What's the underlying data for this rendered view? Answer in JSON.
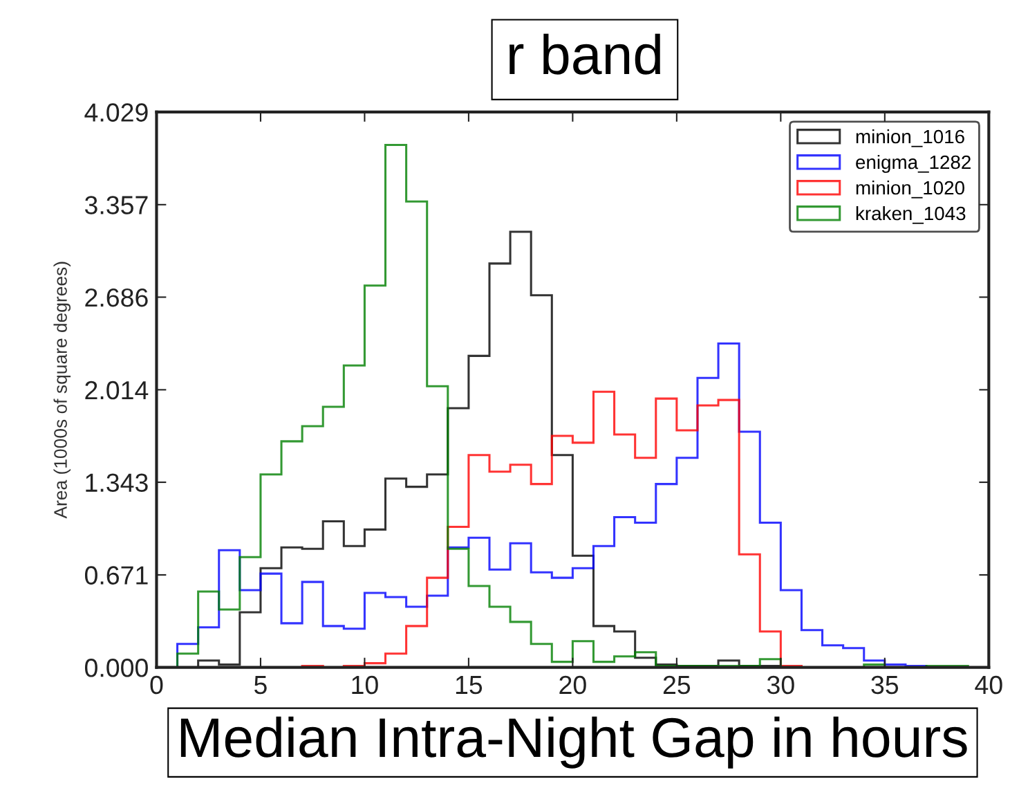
{
  "chart_data": {
    "type": "histogram",
    "title": "r band",
    "xlabel": "Median Intra-Night Gap in hours",
    "ylabel": "Area (1000s of square degrees)",
    "bins": [
      1,
      2,
      3,
      4,
      5,
      6,
      7,
      8,
      9,
      10,
      11,
      12,
      13,
      14,
      15,
      16,
      17,
      18,
      19,
      20,
      21,
      22,
      23,
      24,
      25,
      26,
      27,
      28,
      29,
      30,
      31,
      32,
      33,
      34,
      35,
      36,
      37,
      38,
      39
    ],
    "series": [
      {
        "name": "minion_1016",
        "color": "#000000",
        "values": [
          0,
          0.05,
          0.02,
          0.4,
          0.72,
          0.87,
          0.86,
          1.06,
          0.88,
          1.0,
          1.37,
          1.31,
          1.4,
          1.88,
          2.26,
          2.93,
          3.16,
          2.7,
          1.54,
          0.81,
          0.3,
          0.26,
          0.07,
          0.02,
          0.01,
          0.01,
          0.05,
          0.01,
          0.01,
          0,
          0,
          0,
          0,
          0,
          0,
          0,
          0,
          0
        ]
      },
      {
        "name": "enigma_1282",
        "color": "#0000ff",
        "values": [
          0.17,
          0.29,
          0.85,
          0.56,
          0.68,
          0.32,
          0.62,
          0.3,
          0.28,
          0.54,
          0.51,
          0.44,
          0.52,
          0.87,
          0.94,
          0.71,
          0.9,
          0.69,
          0.65,
          0.72,
          0.88,
          1.09,
          1.05,
          1.33,
          1.52,
          2.1,
          2.35,
          1.71,
          1.05,
          0.56,
          0.27,
          0.16,
          0.14,
          0.05,
          0.02,
          0.01,
          0,
          0
        ]
      },
      {
        "name": "minion_1020",
        "color": "#ff0000",
        "values": [
          0,
          0,
          0,
          0,
          0,
          0,
          0.01,
          0,
          0.01,
          0.03,
          0.1,
          0.3,
          0.65,
          1.02,
          1.54,
          1.42,
          1.47,
          1.33,
          1.68,
          1.63,
          2.0,
          1.69,
          1.52,
          1.95,
          1.72,
          1.9,
          1.94,
          0.82,
          0.26,
          0.01,
          0,
          0,
          0,
          0,
          0,
          0,
          0,
          0
        ]
      },
      {
        "name": "kraken_1043",
        "color": "#008000",
        "values": [
          0.1,
          0.55,
          0.42,
          0.8,
          1.4,
          1.64,
          1.75,
          1.89,
          2.19,
          2.77,
          3.79,
          3.38,
          2.04,
          0.86,
          0.59,
          0.44,
          0.33,
          0.17,
          0.04,
          0.19,
          0.04,
          0.08,
          0.11,
          0.01,
          0.01,
          0.01,
          0.01,
          0.01,
          0.06,
          0,
          0,
          0,
          0,
          0.02,
          0,
          0,
          0.01,
          0.01
        ]
      }
    ],
    "xlim": [
      0,
      40
    ],
    "xticks": [
      0,
      5,
      10,
      15,
      20,
      25,
      30,
      35,
      40
    ],
    "ylim": [
      0,
      4.029
    ],
    "yticks": [
      {
        "value": 0,
        "label": "0.000"
      },
      0.671,
      1.343,
      2.014,
      2.686,
      3.357,
      4.029
    ],
    "grid": false,
    "legend": "top right"
  }
}
